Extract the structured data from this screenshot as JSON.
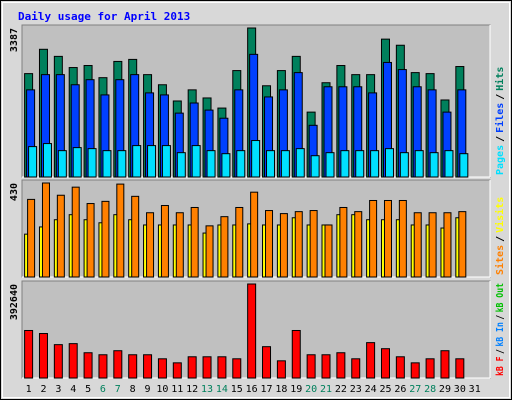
{
  "title": "Daily usage for April 2013",
  "separator": "/",
  "weekends": [
    "6",
    "7",
    "13",
    "14",
    "20",
    "21",
    "27",
    "28"
  ],
  "weekday_color": "#000000",
  "weekend_color": "#00805c",
  "chart_data": [
    {
      "type": "bar",
      "categories": [
        "1",
        "2",
        "3",
        "4",
        "5",
        "6",
        "7",
        "8",
        "9",
        "10",
        "11",
        "12",
        "13",
        "14",
        "15",
        "16",
        "17",
        "18",
        "19",
        "20",
        "21",
        "22",
        "23",
        "24",
        "25",
        "26",
        "27",
        "28",
        "29",
        "30",
        "31"
      ],
      "ylim": [
        0,
        3387
      ],
      "yticks": [
        3387
      ],
      "series": [
        {
          "name": "Pages",
          "color": "#00e0ff",
          "values": [
            691,
            760,
            599,
            668,
            645,
            599,
            599,
            714,
            714,
            714,
            553,
            714,
            599,
            530,
            599,
            829,
            599,
            599,
            645,
            484,
            553,
            599,
            599,
            599,
            645,
            553,
            599,
            553,
            599,
            530,
            null
          ]
        },
        {
          "name": "Files",
          "color": "#0040ff",
          "values": [
            1981,
            2327,
            2327,
            2097,
            2212,
            1866,
            2212,
            2327,
            1912,
            1866,
            1452,
            1682,
            1521,
            1336,
            1981,
            2788,
            1820,
            1981,
            2373,
            1175,
            2051,
            2051,
            2051,
            1912,
            2604,
            2442,
            2051,
            1981,
            1475,
            1981,
            null
          ]
        },
        {
          "name": "Hits",
          "color": "#00805c",
          "values": [
            2350,
            2903,
            2742,
            2488,
            2534,
            2258,
            2627,
            2673,
            2327,
            2097,
            1728,
            1981,
            1797,
            1567,
            2419,
            3387,
            2074,
            2419,
            2742,
            1475,
            2143,
            2534,
            2327,
            2327,
            3134,
            2995,
            2373,
            2350,
            1751,
            2511,
            null
          ]
        }
      ]
    },
    {
      "type": "bar",
      "categories": [
        "1",
        "2",
        "3",
        "4",
        "5",
        "6",
        "7",
        "8",
        "9",
        "10",
        "11",
        "12",
        "13",
        "14",
        "15",
        "16",
        "17",
        "18",
        "19",
        "20",
        "21",
        "22",
        "23",
        "24",
        "25",
        "26",
        "27",
        "28",
        "29",
        "30",
        "31"
      ],
      "ylim": [
        0,
        430
      ],
      "yticks": [
        430
      ],
      "series": [
        {
          "name": "Sites",
          "color": "#ff8000",
          "values": [
            355,
            430,
            374,
            411,
            336,
            346,
            425,
            369,
            294,
            327,
            294,
            318,
            234,
            276,
            318,
            388,
            304,
            290,
            299,
            304,
            238,
            318,
            299,
            350,
            350,
            350,
            294,
            294,
            294,
            299,
            null
          ]
        },
        {
          "name": "Visits",
          "color": "#ffff00",
          "values": [
            196,
            229,
            262,
            285,
            262,
            248,
            285,
            262,
            238,
            238,
            238,
            238,
            201,
            238,
            238,
            243,
            238,
            238,
            271,
            238,
            238,
            285,
            285,
            262,
            262,
            262,
            238,
            238,
            224,
            271,
            null
          ]
        }
      ]
    },
    {
      "type": "bar",
      "categories": [
        "1",
        "2",
        "3",
        "4",
        "5",
        "6",
        "7",
        "8",
        "9",
        "10",
        "11",
        "12",
        "13",
        "14",
        "15",
        "16",
        "17",
        "18",
        "19",
        "20",
        "21",
        "22",
        "23",
        "24",
        "25",
        "26",
        "27",
        "28",
        "29",
        "30",
        "31"
      ],
      "ylim": [
        0,
        392640
      ],
      "yticks": [
        392640
      ],
      "series": [
        {
          "name": "kB F",
          "color": "#ff0000",
          "values": [
            198434,
            185768,
            139326,
            143548,
            105550,
            97106,
            113994,
            97106,
            97106,
            80218,
            63330,
            88662,
            88662,
            88662,
            80218,
            392640,
            130882,
            71774,
            198434,
            97106,
            97106,
            105550,
            80218,
            147770,
            122438,
            88662,
            63330,
            80218,
            113994,
            80218,
            null
          ]
        }
      ],
      "other_labels": [
        {
          "name": "kB In",
          "color": "#0080ff"
        },
        {
          "name": "kB Out",
          "color": "#00c000"
        }
      ]
    }
  ]
}
